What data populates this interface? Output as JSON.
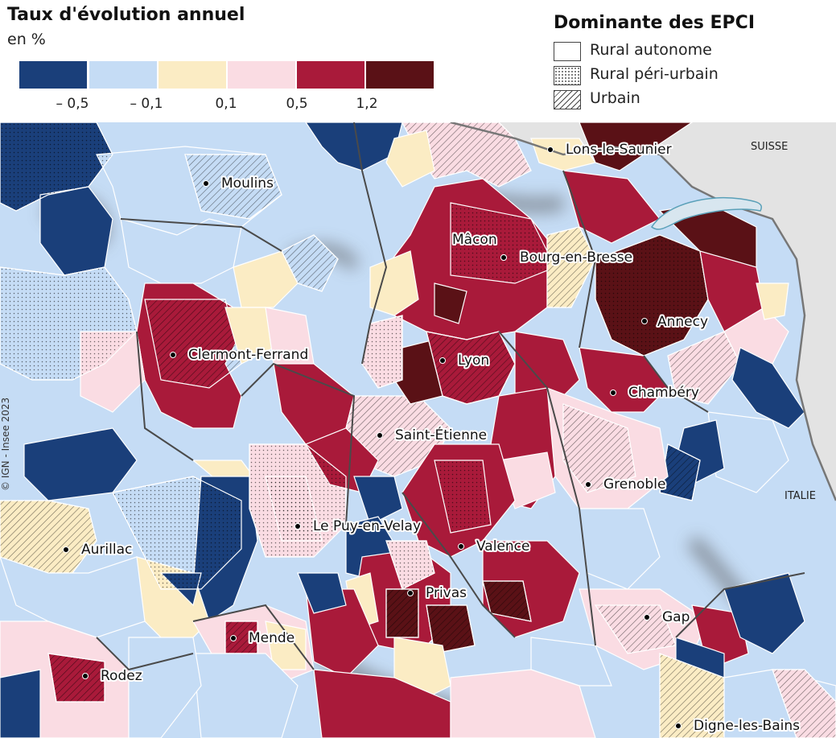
{
  "legend": {
    "title": "Taux d'évolution annuel",
    "unit": "en %",
    "classes": [
      {
        "color": "#1a3f7a"
      },
      {
        "color": "#c5dcf5"
      },
      {
        "color": "#fbecc4"
      },
      {
        "color": "#fadce3"
      },
      {
        "color": "#a91a3a"
      },
      {
        "color": "#5a1116"
      }
    ],
    "breaks": [
      "– 0,5",
      "– 0,1",
      "0,1",
      "0,5",
      "1,2"
    ]
  },
  "typology": {
    "title": "Dominante des EPCI",
    "items": [
      {
        "label": "Rural autonome",
        "pattern": "none"
      },
      {
        "label": "Rural péri-urbain",
        "pattern": "dots"
      },
      {
        "label": "Urbain",
        "pattern": "hatch"
      }
    ]
  },
  "cities": [
    {
      "name": "Lons-le-Saunier"
    },
    {
      "name": "Moulins"
    },
    {
      "name": "Mâcon"
    },
    {
      "name": "Bourg-en-Bresse"
    },
    {
      "name": "Annecy"
    },
    {
      "name": "Clermont-Ferrand"
    },
    {
      "name": "Lyon"
    },
    {
      "name": "Chambéry"
    },
    {
      "name": "Saint-Étienne"
    },
    {
      "name": "Grenoble"
    },
    {
      "name": "Le Puy-en-Velay"
    },
    {
      "name": "Valence"
    },
    {
      "name": "Aurillac"
    },
    {
      "name": "Privas"
    },
    {
      "name": "Gap"
    },
    {
      "name": "Mende"
    },
    {
      "name": "Rodez"
    },
    {
      "name": "Digne-les-Bains"
    }
  ],
  "countries": [
    {
      "name": "SUISSE"
    },
    {
      "name": "ITALIE"
    }
  ],
  "copyright": "© IGN - Insee 2023"
}
